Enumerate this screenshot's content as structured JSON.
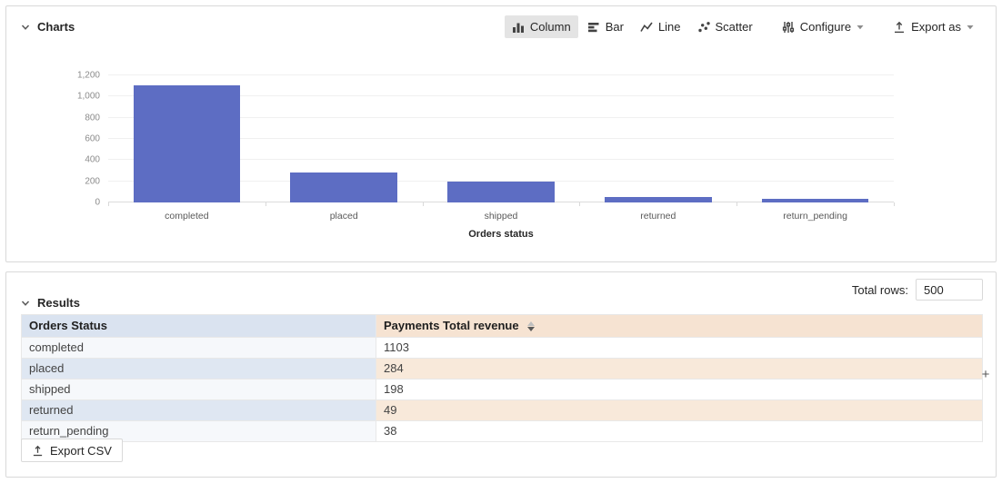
{
  "charts_panel": {
    "title": "Charts",
    "toolbar": {
      "column_label": "Column",
      "bar_label": "Bar",
      "line_label": "Line",
      "scatter_label": "Scatter",
      "configure_label": "Configure",
      "export_as_label": "Export as",
      "selected": "Column"
    }
  },
  "chart_data": {
    "type": "bar",
    "title": "",
    "categories": [
      "completed",
      "placed",
      "shipped",
      "returned",
      "return_pending"
    ],
    "values": [
      1103,
      284,
      198,
      49,
      38
    ],
    "xlabel": "Orders status",
    "ylabel": "",
    "ylim": [
      0,
      1200
    ],
    "ytick_step": 200,
    "ytick_labels": [
      "0",
      "200",
      "400",
      "600",
      "800",
      "1,000",
      "1,200"
    ],
    "bar_color": "#5d6dc3",
    "grid": true,
    "legend": false
  },
  "results_panel": {
    "title": "Results",
    "total_rows_label": "Total rows:",
    "total_rows_value": "500",
    "table": {
      "columns": [
        {
          "label": "Orders Status",
          "sorted": null
        },
        {
          "label": "Payments Total revenue",
          "sorted": "descending"
        }
      ],
      "rows": [
        [
          "completed",
          "1103"
        ],
        [
          "placed",
          "284"
        ],
        [
          "shipped",
          "198"
        ],
        [
          "returned",
          "49"
        ],
        [
          "return_pending",
          "38"
        ]
      ]
    },
    "add_column_button_label": "+",
    "export_csv_label": "Export CSV"
  },
  "icons": [
    "chevron-down-icon",
    "column-chart-icon",
    "bar-chart-icon",
    "line-chart-icon",
    "scatter-chart-icon",
    "configure-sliders-icon",
    "export-icon",
    "caret-down-icon",
    "sort-carets-icon",
    "upload-icon",
    "plus-icon"
  ],
  "colors": {
    "bar": "#5d6dc3",
    "selected_chart_type_bg": "#e4e4e4",
    "table_header_dimension_bg": "#dae3f0",
    "table_header_measure_bg": "#f6e3d2",
    "row_even_dimension_bg": "#dfe7f2",
    "row_odd_dimension_bg": "#f6f8fb",
    "row_even_measure_bg": "#f8e9da",
    "row_odd_measure_bg": "#ffffff"
  }
}
